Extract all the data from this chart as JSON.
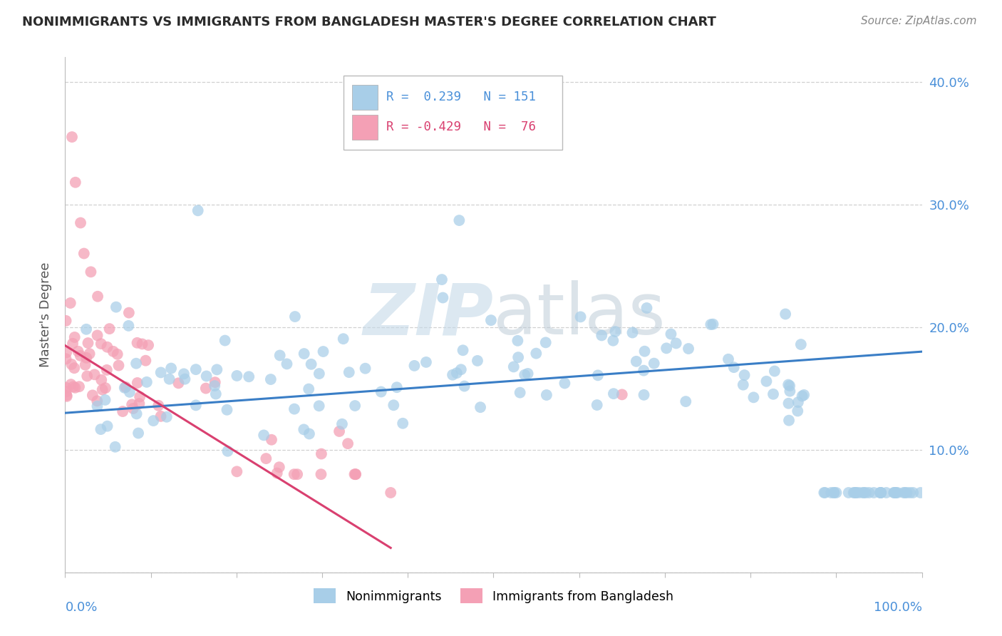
{
  "title": "NONIMMIGRANTS VS IMMIGRANTS FROM BANGLADESH MASTER'S DEGREE CORRELATION CHART",
  "source": "Source: ZipAtlas.com",
  "ylabel": "Master's Degree",
  "xlim": [
    0.0,
    1.0
  ],
  "ylim": [
    0.0,
    0.42
  ],
  "color_blue": "#A8CEE8",
  "color_pink": "#F4A0B5",
  "color_blue_line": "#3A7EC6",
  "color_pink_line": "#D94070",
  "color_blue_text": "#4A90D9",
  "color_title": "#2B2B2B",
  "watermark_color": "#C5D9E8",
  "background_color": "#FFFFFF",
  "grid_color": "#CCCCCC",
  "axis_color": "#BBBBBB",
  "trend_blue_x0": 0.0,
  "trend_blue_y0": 0.13,
  "trend_blue_x1": 1.0,
  "trend_blue_y1": 0.18,
  "trend_pink_x0": 0.0,
  "trend_pink_y0": 0.185,
  "trend_pink_x1": 0.38,
  "trend_pink_y1": 0.02
}
